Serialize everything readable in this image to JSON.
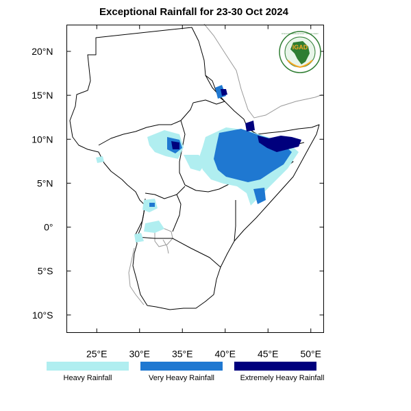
{
  "title": "Exceptional Rainfall for 23-30 Oct 2024",
  "logo": {
    "text": "IGAD",
    "ring_text": "INTERGOVERNMENTAL AUTHORITY ON DEVELOPMENT"
  },
  "map": {
    "lon_range": [
      21.5,
      51.5
    ],
    "lat_range": [
      -12,
      23
    ],
    "lon_ticks": [
      {
        "value": 25,
        "label": "25°E"
      },
      {
        "value": 30,
        "label": "30°E"
      },
      {
        "value": 35,
        "label": "35°E"
      },
      {
        "value": 40,
        "label": "40°E"
      },
      {
        "value": 45,
        "label": "45°E"
      },
      {
        "value": 50,
        "label": "50°E"
      }
    ],
    "lat_ticks": [
      {
        "value": 20,
        "label": "20°N"
      },
      {
        "value": 15,
        "label": "15°N"
      },
      {
        "value": 10,
        "label": "10°N"
      },
      {
        "value": 5,
        "label": "5°N"
      },
      {
        "value": 0,
        "label": "0°"
      },
      {
        "value": -5,
        "label": "5°S"
      },
      {
        "value": -10,
        "label": "10°S"
      }
    ]
  },
  "legend": [
    {
      "label": "Heavy Rainfall",
      "color": "#b0eef0"
    },
    {
      "label": "Very Heavy Rainfall",
      "color": "#1f78d1"
    },
    {
      "label": "Extremely Heavy Rainfall",
      "color": "#00007d"
    }
  ],
  "colors": {
    "heavy": "#b0eef0",
    "very_heavy": "#1f78d1",
    "extreme": "#00007d",
    "border": "#000000",
    "coast_outside": "#999999"
  }
}
